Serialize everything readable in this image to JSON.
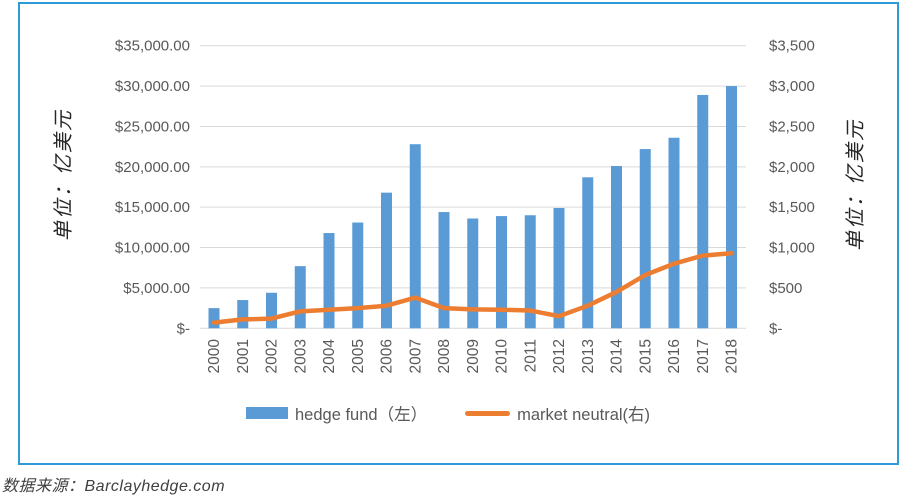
{
  "source_note": "数据来源：Barclayhedge.com",
  "colors": {
    "bar": "#5b9bd5",
    "line": "#ed7d31",
    "gridline": "#d9d9d9",
    "tick_text": "#595959",
    "card_border": "#2e9bd8"
  },
  "chart_data": {
    "type": "combo-bar-line",
    "title": "",
    "grid": "horizontal-on",
    "legend_position": "bottom",
    "categories": [
      "2000",
      "2001",
      "2002",
      "2003",
      "2004",
      "2005",
      "2006",
      "2007",
      "2008",
      "2009",
      "2010",
      "2011",
      "2012",
      "2013",
      "2014",
      "2015",
      "2016",
      "2017",
      "2018"
    ],
    "series": [
      {
        "name": "hedge fund（左）",
        "type": "bar",
        "axis": "left",
        "color": "#5b9bd5",
        "values": [
          2500,
          3500,
          4400,
          7700,
          11800,
          13100,
          16800,
          22800,
          14400,
          13600,
          13900,
          14000,
          14900,
          18700,
          20100,
          22200,
          23600,
          28900,
          30000
        ]
      },
      {
        "name": "market neutral(右)",
        "type": "line",
        "axis": "right",
        "color": "#ed7d31",
        "values": [
          70,
          110,
          120,
          210,
          230,
          250,
          280,
          380,
          250,
          235,
          230,
          220,
          150,
          280,
          450,
          660,
          800,
          900,
          930
        ]
      }
    ],
    "left_axis": {
      "title": "单位：亿美元",
      "min": 0,
      "max": 35000,
      "step": 5000,
      "tick_labels": [
        "$35,000.00",
        "$30,000.00",
        "$25,000.00",
        "$20,000.00",
        "$15,000.00",
        "$10,000.00",
        "$5,000.00",
        "$-"
      ]
    },
    "right_axis": {
      "title": "单位：亿美元",
      "min": 0,
      "max": 3500,
      "step": 500,
      "tick_labels": [
        "$3,500",
        "$3,000",
        "$2,500",
        "$2,000",
        "$1,500",
        "$1,000",
        "$500",
        "$-"
      ]
    }
  }
}
